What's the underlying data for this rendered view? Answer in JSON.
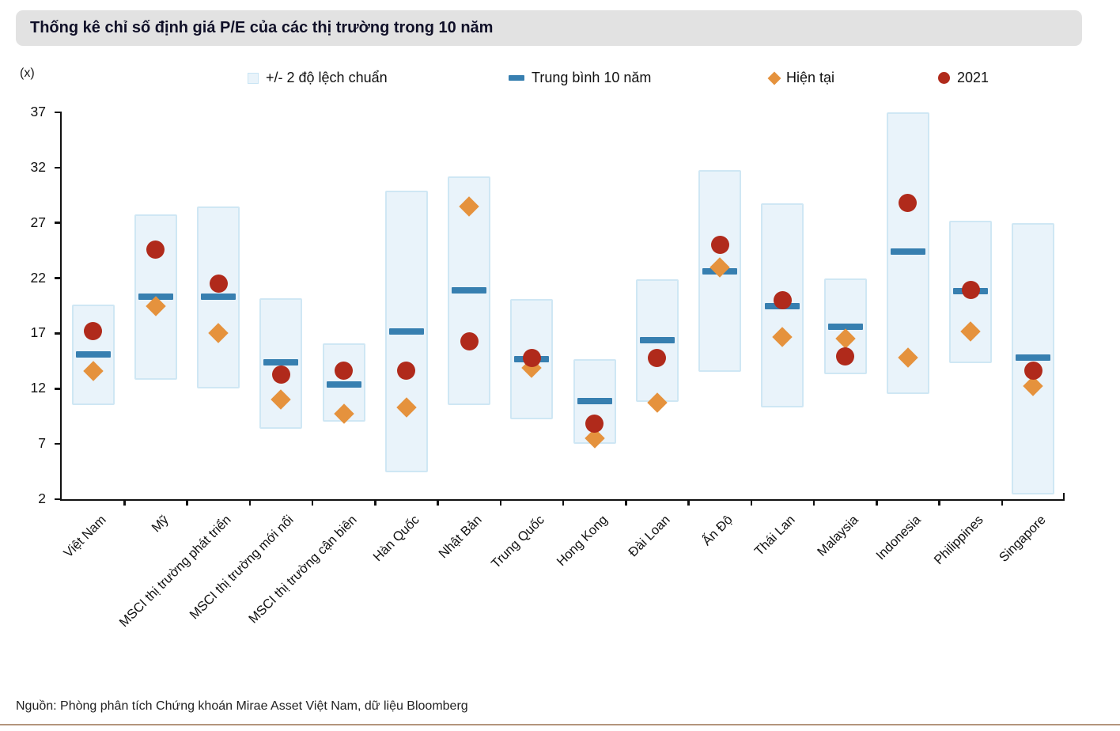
{
  "title": "Thống kê chỉ số định giá P/E của các thị trường trong 10 năm",
  "y_axis_unit": "(x)",
  "legend": {
    "band": "+/- 2 độ lệch chuẩn",
    "mean": "Trung bình 10 năm",
    "current": "Hiện tại",
    "y2021": "2021"
  },
  "source": "Nguồn: Phòng phân tích Chứng khoán Mirae Asset Việt Nam, dữ liệu Bloomberg",
  "colors": {
    "band_fill": "#e9f3fa",
    "band_border": "#cfe7f4",
    "mean_dash": "#377fb0",
    "current_diamond": "#e5923d",
    "circle_2021": "#b02a1b",
    "title_bar_bg": "#e2e2e2",
    "title_text": "#101028",
    "axis": "#111111",
    "footer_line": "#b3957c"
  },
  "chart_data": {
    "type": "bar",
    "subtype": "floating-range-band-with-markers",
    "title": "Thống kê chỉ số định giá P/E của các thị trường trong 10 năm",
    "unit_label": "(x)",
    "grid": false,
    "legend_position": "top",
    "ylim": [
      2,
      37
    ],
    "yticks": [
      2,
      7,
      12,
      17,
      22,
      27,
      32,
      37
    ],
    "categories": [
      "Việt Nam",
      "Mỹ",
      "MSCI thị trường phát triển",
      "MSCI thị trường mới nổi",
      "MSCI thị trường cận biên",
      "Hàn Quốc",
      "Nhật Bản",
      "Trung Quốc",
      "Hong Kong",
      "Đài Loan",
      "Ấn Độ",
      "Thái Lan",
      "Malaysia",
      "Indonesia",
      "Philippines",
      "Singapore"
    ],
    "series": [
      {
        "name": "+/- 2 độ lệch chuẩn",
        "marker": "band",
        "low": [
          10.5,
          12.8,
          12.0,
          8.4,
          9.0,
          4.4,
          10.5,
          9.2,
          7.0,
          10.8,
          13.5,
          10.3,
          13.3,
          11.5,
          14.3,
          2.4
        ],
        "high": [
          19.6,
          27.8,
          28.5,
          20.2,
          16.1,
          29.9,
          31.2,
          20.1,
          14.7,
          21.9,
          31.8,
          28.8,
          22.0,
          37.0,
          27.2,
          27.0
        ]
      },
      {
        "name": "Trung bình 10 năm",
        "marker": "dash",
        "values": [
          15.1,
          20.3,
          20.3,
          14.4,
          12.4,
          17.2,
          20.9,
          14.7,
          10.9,
          16.4,
          22.6,
          19.5,
          17.6,
          24.4,
          20.8,
          14.8
        ]
      },
      {
        "name": "Hiện tại",
        "marker": "diamond",
        "values": [
          13.6,
          19.5,
          17.0,
          11.0,
          9.7,
          10.3,
          28.5,
          13.9,
          7.5,
          10.7,
          23.0,
          16.7,
          16.5,
          14.8,
          17.2,
          12.2
        ]
      },
      {
        "name": "2021",
        "marker": "circle",
        "values": [
          17.2,
          24.6,
          21.5,
          13.3,
          13.6,
          13.6,
          16.3,
          14.8,
          8.8,
          14.8,
          25.0,
          20.0,
          14.9,
          28.8,
          20.9,
          13.6
        ]
      }
    ]
  }
}
